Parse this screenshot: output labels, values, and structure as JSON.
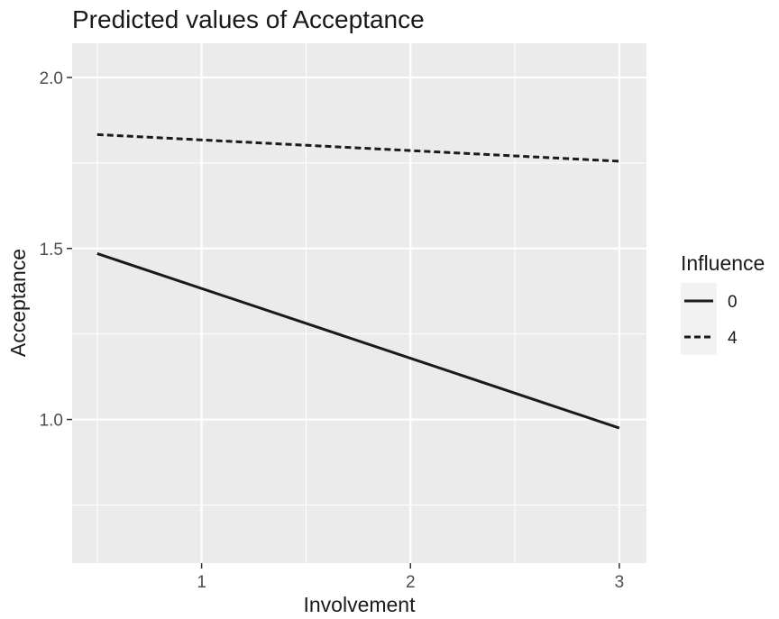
{
  "chart_data": {
    "type": "line",
    "title": "Predicted values of Acceptance",
    "xlabel": "Involvement",
    "ylabel": "Acceptance",
    "xlim": [
      0.38,
      3.13
    ],
    "ylim": [
      0.58,
      2.1
    ],
    "x_ticks": [
      1,
      2,
      3
    ],
    "x_tick_labels": [
      "1",
      "2",
      "3"
    ],
    "y_ticks": [
      1.0,
      1.5,
      2.0
    ],
    "y_tick_labels": [
      "1.0",
      "1.5",
      "2.0"
    ],
    "grid": true,
    "legend": {
      "title": "Influence",
      "position": "right"
    },
    "series": [
      {
        "name": "0",
        "linestyle": "solid",
        "x": [
          0.5,
          3
        ],
        "values": [
          1.485,
          0.975
        ]
      },
      {
        "name": "4",
        "linestyle": "dashed",
        "x": [
          0.5,
          3
        ],
        "values": [
          1.833,
          1.755
        ]
      }
    ],
    "colors": {
      "panel": "#ebebeb",
      "grid": "#ffffff",
      "line": "#1a1a1a",
      "tick_text": "#4d4d4d",
      "legend_key_bg": "#f2f2f2"
    }
  }
}
